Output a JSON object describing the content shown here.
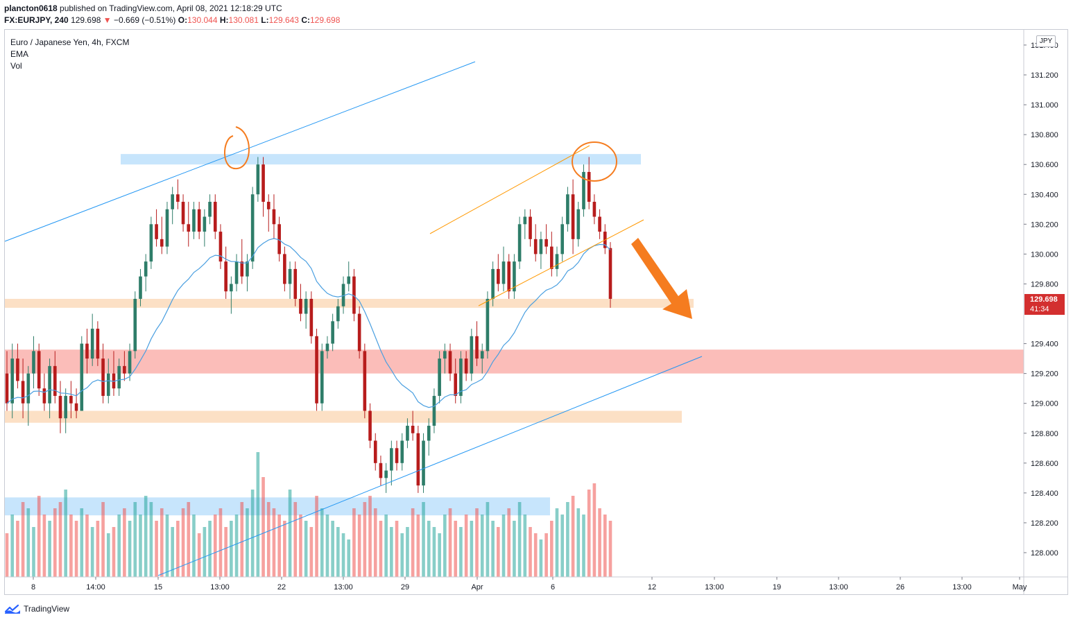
{
  "header": {
    "line1_user": "plancton0618",
    "line1_rest": " published on TradingView.com, April 08, 2021 12:18:29 UTC",
    "symbol": "FX:EURJPY, 240",
    "last": "129.698",
    "change_arrow": "▼",
    "change": "−0.669 (−0.51%)",
    "o_label": "O:",
    "o_val": "130.044",
    "h_label": "H:",
    "h_val": "130.081",
    "l_label": "L:",
    "l_val": "129.643",
    "c_label": "C:",
    "c_val": "129.698"
  },
  "legend": {
    "title": "Euro / Japanese Yen, 4h, FXCM",
    "ema": "EMA",
    "vol": "Vol"
  },
  "price_tag": {
    "price": "129.698",
    "countdown": "41:34"
  },
  "currency_badge": "JPY",
  "footer": {
    "brand": "TradingView"
  },
  "colors": {
    "up": "#26a69a",
    "down": "#ef5350",
    "candle_up": "#2e7d69",
    "candle_down": "#b71c1c",
    "ema": "#4a9fe0",
    "trendline": "#2196f3",
    "channel": "#ff9800",
    "annotation": "#f57c1f",
    "zone_blue": "rgba(33,150,243,0.25)",
    "zone_red": "rgba(244,67,54,0.35)",
    "zone_orange": "rgba(245,166,90,0.35)"
  },
  "chart_data": {
    "type": "candlestick",
    "symbol": "EURJPY",
    "timeframe": "4h",
    "y_ticks": [
      "131.400",
      "131.200",
      "131.000",
      "130.800",
      "130.600",
      "130.400",
      "130.200",
      "130.000",
      "129.800",
      "129.400",
      "129.200",
      "129.000",
      "128.800",
      "128.600",
      "128.400",
      "128.200",
      "128.000"
    ],
    "x_ticks": [
      "8",
      "14:00",
      "15",
      "13:00",
      "22",
      "13:00",
      "29",
      "Apr",
      "6",
      "12",
      "13:00",
      "19",
      "13:00",
      "26",
      "13:00",
      "May"
    ],
    "ylim": [
      127.85,
      131.55
    ],
    "last_price": 129.698,
    "zones": [
      {
        "kind": "resistance",
        "color": "blue",
        "from": 130.6,
        "to": 130.67
      },
      {
        "kind": "support",
        "color": "orange",
        "from": 129.64,
        "to": 129.7
      },
      {
        "kind": "support",
        "color": "red",
        "from": 129.2,
        "to": 129.36
      },
      {
        "kind": "support",
        "color": "orange",
        "from": 128.87,
        "to": 128.95
      },
      {
        "kind": "support",
        "color": "blue",
        "from": 128.25,
        "to": 128.37
      }
    ],
    "ohlc": [
      [
        129.2,
        129.35,
        128.95,
        129.0
      ],
      [
        129.0,
        129.4,
        128.9,
        129.3
      ],
      [
        129.3,
        129.4,
        129.1,
        129.15
      ],
      [
        129.15,
        129.3,
        128.9,
        129.0
      ],
      [
        129.0,
        129.25,
        128.85,
        129.2
      ],
      [
        129.2,
        129.45,
        129.1,
        129.35
      ],
      [
        129.35,
        129.4,
        129.05,
        129.1
      ],
      [
        129.1,
        129.2,
        128.95,
        129.0
      ],
      [
        129.0,
        129.3,
        128.9,
        129.25
      ],
      [
        129.25,
        129.35,
        129.0,
        129.05
      ],
      [
        129.05,
        129.15,
        128.8,
        128.9
      ],
      [
        128.9,
        129.1,
        128.8,
        129.05
      ],
      [
        129.05,
        129.15,
        128.9,
        129.0
      ],
      [
        129.0,
        129.1,
        128.9,
        128.95
      ],
      [
        128.95,
        129.45,
        128.95,
        129.4
      ],
      [
        129.4,
        129.5,
        129.2,
        129.3
      ],
      [
        129.3,
        129.6,
        129.25,
        129.5
      ],
      [
        129.5,
        129.55,
        129.25,
        129.3
      ],
      [
        129.3,
        129.4,
        129.0,
        129.05
      ],
      [
        129.05,
        129.3,
        129.0,
        129.2
      ],
      [
        129.2,
        129.35,
        129.05,
        129.1
      ],
      [
        129.1,
        129.3,
        129.05,
        129.25
      ],
      [
        129.25,
        129.35,
        129.15,
        129.2
      ],
      [
        129.2,
        129.4,
        129.15,
        129.35
      ],
      [
        129.35,
        129.75,
        129.3,
        129.7
      ],
      [
        129.7,
        129.9,
        129.65,
        129.85
      ],
      [
        129.85,
        130.0,
        129.75,
        129.95
      ],
      [
        129.95,
        130.25,
        129.9,
        130.2
      ],
      [
        130.2,
        130.3,
        130.05,
        130.1
      ],
      [
        130.1,
        130.25,
        130.0,
        130.05
      ],
      [
        130.05,
        130.35,
        130.0,
        130.3
      ],
      [
        130.3,
        130.45,
        130.2,
        130.4
      ],
      [
        130.4,
        130.5,
        130.3,
        130.35
      ],
      [
        130.35,
        130.4,
        130.15,
        130.2
      ],
      [
        130.2,
        130.35,
        130.05,
        130.15
      ],
      [
        130.15,
        130.35,
        130.1,
        130.3
      ],
      [
        130.3,
        130.35,
        130.1,
        130.15
      ],
      [
        130.15,
        130.3,
        130.05,
        130.25
      ],
      [
        130.25,
        130.4,
        130.2,
        130.35
      ],
      [
        130.35,
        130.4,
        130.1,
        130.15
      ],
      [
        130.15,
        130.2,
        129.9,
        129.95
      ],
      [
        129.95,
        130.05,
        129.7,
        129.75
      ],
      [
        129.75,
        129.85,
        129.6,
        129.8
      ],
      [
        129.8,
        130.0,
        129.75,
        129.95
      ],
      [
        129.95,
        130.1,
        129.8,
        129.85
      ],
      [
        129.85,
        130.0,
        129.75,
        129.95
      ],
      [
        129.95,
        130.45,
        129.9,
        130.4
      ],
      [
        130.4,
        130.65,
        130.35,
        130.6
      ],
      [
        130.6,
        130.65,
        130.25,
        130.35
      ],
      [
        130.35,
        130.4,
        130.15,
        130.3
      ],
      [
        130.3,
        130.4,
        130.1,
        130.2
      ],
      [
        130.2,
        130.25,
        129.95,
        130.0
      ],
      [
        130.0,
        130.05,
        129.75,
        129.8
      ],
      [
        129.8,
        129.95,
        129.7,
        129.9
      ],
      [
        129.9,
        129.95,
        129.65,
        129.7
      ],
      [
        129.7,
        129.8,
        129.55,
        129.6
      ],
      [
        129.6,
        129.75,
        129.5,
        129.7
      ],
      [
        129.7,
        129.75,
        129.4,
        129.45
      ],
      [
        129.45,
        129.5,
        128.95,
        129.0
      ],
      [
        129.0,
        129.4,
        128.95,
        129.35
      ],
      [
        129.35,
        129.45,
        129.3,
        129.4
      ],
      [
        129.4,
        129.6,
        129.35,
        129.55
      ],
      [
        129.55,
        129.7,
        129.5,
        129.65
      ],
      [
        129.65,
        129.85,
        129.6,
        129.8
      ],
      [
        129.8,
        129.95,
        129.75,
        129.85
      ],
      [
        129.85,
        129.9,
        129.55,
        129.6
      ],
      [
        129.6,
        129.65,
        129.3,
        129.35
      ],
      [
        129.35,
        129.4,
        128.9,
        128.95
      ],
      [
        128.95,
        129.0,
        128.7,
        128.75
      ],
      [
        128.75,
        128.8,
        128.55,
        128.6
      ],
      [
        128.6,
        128.65,
        128.45,
        128.5
      ],
      [
        128.5,
        128.6,
        128.4,
        128.55
      ],
      [
        128.55,
        128.75,
        128.45,
        128.7
      ],
      [
        128.7,
        128.75,
        128.55,
        128.6
      ],
      [
        128.6,
        128.8,
        128.55,
        128.75
      ],
      [
        128.75,
        128.9,
        128.7,
        128.85
      ],
      [
        128.85,
        128.95,
        128.75,
        128.8
      ],
      [
        128.8,
        128.85,
        128.4,
        128.45
      ],
      [
        128.45,
        128.8,
        128.4,
        128.75
      ],
      [
        128.75,
        128.9,
        128.65,
        128.85
      ],
      [
        128.85,
        129.1,
        128.8,
        129.05
      ],
      [
        129.05,
        129.35,
        129.0,
        129.3
      ],
      [
        129.3,
        129.4,
        129.2,
        129.35
      ],
      [
        129.35,
        129.4,
        129.15,
        129.2
      ],
      [
        129.2,
        129.3,
        129.0,
        129.05
      ],
      [
        129.05,
        129.35,
        129.0,
        129.3
      ],
      [
        129.3,
        129.35,
        129.15,
        129.2
      ],
      [
        129.2,
        129.5,
        129.15,
        129.45
      ],
      [
        129.45,
        129.55,
        129.25,
        129.3
      ],
      [
        129.3,
        129.4,
        129.2,
        129.35
      ],
      [
        129.35,
        129.75,
        129.3,
        129.7
      ],
      [
        129.7,
        129.95,
        129.65,
        129.9
      ],
      [
        129.9,
        130.0,
        129.75,
        129.8
      ],
      [
        129.8,
        130.05,
        129.75,
        129.95
      ],
      [
        129.95,
        130.0,
        129.7,
        129.75
      ],
      [
        129.75,
        130.0,
        129.7,
        129.95
      ],
      [
        129.95,
        130.25,
        129.9,
        130.2
      ],
      [
        130.2,
        130.3,
        130.1,
        130.25
      ],
      [
        130.25,
        130.3,
        130.05,
        130.1
      ],
      [
        130.1,
        130.2,
        129.95,
        130.0
      ],
      [
        130.0,
        130.15,
        129.9,
        130.1
      ],
      [
        130.1,
        130.2,
        130.0,
        130.05
      ],
      [
        130.05,
        130.15,
        129.85,
        129.9
      ],
      [
        129.9,
        130.05,
        129.85,
        130.0
      ],
      [
        130.0,
        130.25,
        129.95,
        130.2
      ],
      [
        130.2,
        130.45,
        130.15,
        130.4
      ],
      [
        130.4,
        130.5,
        130.0,
        130.1
      ],
      [
        130.1,
        130.35,
        130.05,
        130.3
      ],
      [
        130.3,
        130.6,
        130.25,
        130.55
      ],
      [
        130.55,
        130.65,
        130.3,
        130.35
      ],
      [
        130.35,
        130.4,
        130.2,
        130.25
      ],
      [
        130.25,
        130.3,
        130.1,
        130.15
      ],
      [
        130.15,
        130.2,
        130.0,
        130.04
      ],
      [
        130.04,
        130.08,
        129.64,
        129.7
      ]
    ],
    "volume_scale_note": "relative",
    "volumes": [
      0.35,
      0.5,
      0.45,
      0.6,
      0.55,
      0.4,
      0.65,
      0.5,
      0.45,
      0.55,
      0.6,
      0.7,
      0.5,
      0.45,
      0.55,
      0.5,
      0.4,
      0.45,
      0.6,
      0.35,
      0.4,
      0.5,
      0.55,
      0.45,
      0.6,
      0.5,
      0.65,
      0.6,
      0.45,
      0.55,
      0.5,
      0.4,
      0.45,
      0.55,
      0.6,
      0.5,
      0.35,
      0.4,
      0.45,
      0.5,
      0.55,
      0.4,
      0.45,
      0.5,
      0.6,
      0.55,
      0.7,
      1.0,
      0.8,
      0.6,
      0.55,
      0.5,
      0.45,
      0.7,
      0.6,
      0.5,
      0.45,
      0.4,
      0.65,
      0.55,
      0.5,
      0.45,
      0.4,
      0.35,
      0.3,
      0.55,
      0.5,
      0.6,
      0.65,
      0.55,
      0.45,
      0.5,
      0.4,
      0.45,
      0.35,
      0.4,
      0.55,
      0.5,
      0.6,
      0.45,
      0.4,
      0.35,
      0.5,
      0.55,
      0.45,
      0.4,
      0.5,
      0.45,
      0.55,
      0.5,
      0.6,
      0.45,
      0.4,
      0.5,
      0.55,
      0.45,
      0.6,
      0.5,
      0.4,
      0.35,
      0.3,
      0.35,
      0.45,
      0.55,
      0.5,
      0.6,
      0.65,
      0.55,
      0.5,
      0.7,
      0.75,
      0.55,
      0.5,
      0.45
    ]
  }
}
